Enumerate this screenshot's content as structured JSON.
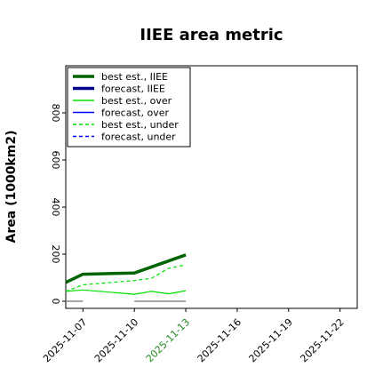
{
  "chart_data": {
    "type": "line",
    "title": "IIEE area metric",
    "xlabel": "",
    "ylabel": "Area (1000km2)",
    "ylim": [
      -30,
      1000
    ],
    "xlim": [
      "2025-11-06",
      "2025-11-23"
    ],
    "grid": false,
    "legend_position": "top-left",
    "x_ticks": [
      "2025-11-07",
      "2025-11-10",
      "2025-11-13",
      "2025-11-16",
      "2025-11-19",
      "2025-11-22"
    ],
    "x_tick_highlight": "2025-11-13",
    "x_tick_highlight_color": "#228B22",
    "y_ticks": [
      0,
      200,
      400,
      600,
      800
    ],
    "series": [
      {
        "name": "best est., IIEE",
        "color": "#006400",
        "style": "solid",
        "weight": "thick",
        "points": [
          [
            "2025-11-06",
            80
          ],
          [
            "2025-11-07",
            115
          ],
          [
            "2025-11-10",
            120
          ],
          [
            "2025-11-13",
            197
          ]
        ]
      },
      {
        "name": "forecast, IIEE",
        "color": "#00008B",
        "style": "solid",
        "weight": "thick",
        "points": []
      },
      {
        "name": "best est., over",
        "color": "#00E000",
        "style": "solid",
        "weight": "thin",
        "points": [
          [
            "2025-11-06",
            42
          ],
          [
            "2025-11-07",
            48
          ],
          [
            "2025-11-10",
            30
          ],
          [
            "2025-11-11",
            42
          ],
          [
            "2025-11-12",
            32
          ],
          [
            "2025-11-13",
            45
          ]
        ]
      },
      {
        "name": "forecast, over",
        "color": "#0000FF",
        "style": "solid",
        "weight": "thin",
        "points": []
      },
      {
        "name": "best est., under",
        "color": "#00E000",
        "style": "dashed",
        "weight": "thin",
        "points": [
          [
            "2025-11-06",
            42
          ],
          [
            "2025-11-07",
            70
          ],
          [
            "2025-11-10",
            88
          ],
          [
            "2025-11-11",
            98
          ],
          [
            "2025-11-12",
            140
          ],
          [
            "2025-11-13",
            155
          ]
        ]
      },
      {
        "name": "forecast, under",
        "color": "#0000FF",
        "style": "dashed",
        "weight": "thin",
        "points": []
      }
    ],
    "baseline_segments": {
      "color": "#888888",
      "y": 0,
      "ranges": [
        [
          "2025-11-06",
          "2025-11-07"
        ],
        [
          "2025-11-10",
          "2025-11-13"
        ]
      ]
    }
  }
}
